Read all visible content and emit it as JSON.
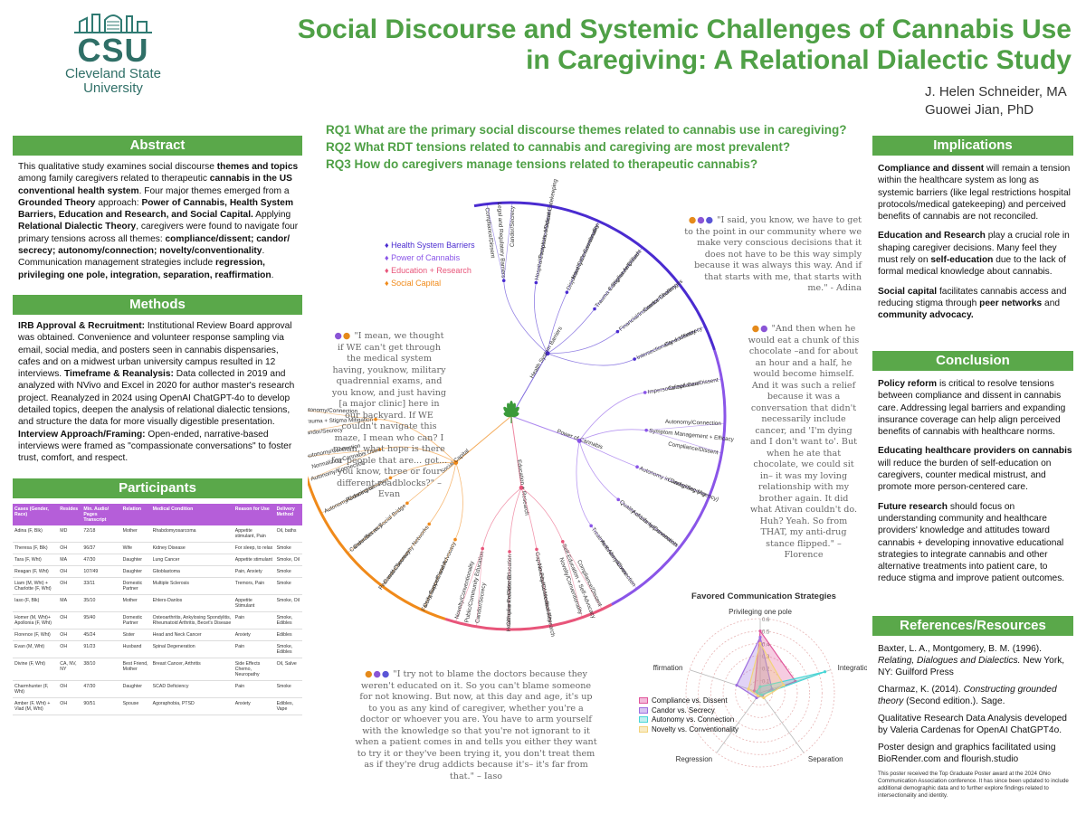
{
  "logo": {
    "wordmark": "CSU",
    "line1": "Cleveland State",
    "line2": "University"
  },
  "title": {
    "line1": "Social Discourse and Systemic Challenges of Cannabis Use",
    "line2": "in Caregiving: A Relational Dialectic Study"
  },
  "authors": {
    "a1": "J. Helen Schneider, MA",
    "a2": "Guowei Jian, PhD"
  },
  "research_questions": [
    "RQ1 What are the primary social discourse themes related to cannabis use in caregiving?",
    "RQ2 What RDT tensions related to cannabis and caregiving are most prevalent?",
    "RQ3 How do caregivers manage tensions related to therapeutic cannabis?"
  ],
  "abstract": {
    "heading": "Abstract",
    "t1": "This qualitative study examines social discourse ",
    "b1": "themes and topics",
    "t2": " among family caregivers related to therapeutic ",
    "b2": "cannabis in the US conventional health system",
    "t3": ". Four major themes emerged from a ",
    "b3": "Grounded Theory",
    "t4": " approach: ",
    "b4": "Power of Cannabis, Health System Barriers, Education and Research, and Social Capital.",
    "t5": " Applying ",
    "b5": "Relational Dialectic Theory",
    "t6": ", caregivers were found to navigate four primary tensions across all themes: ",
    "b6": "compliance/dissent; candor/ secrecy; autonomy/connection; novelty/conventionality",
    "t7": ". Communication management strategies include ",
    "b7": "regression, privileging one pole, integration, separation, reaffirmation",
    "t8": "."
  },
  "methods": {
    "heading": "Methods",
    "b1": "IRB Approval & Recruitment:",
    "t1": " Institutional Review Board approval was obtained. Convenience and volunteer response sampling via email, social media, and posters seen in cannabis dispensaries, cafes and on a midwest urban university campus resulted in 12 interviews. ",
    "b2": "Timeframe & Reanalysis:",
    "t2": " Data collected in 2019 and analyzed with NVivo and Excel in 2020 for author master's research project. Reanalyzed in 2024 using OpenAI ChatGPT-4o to develop detailed topics, deepen the analysis of relational dialectic tensions, and structure the data for more visually digestible presentation. ",
    "b3": "Interview Approach/Framing:",
    "t3": " Open-ended, narrative-based interviews were framed as \"compassionate conversations\" to foster trust, comfort, and respect."
  },
  "participants": {
    "heading": "Participants",
    "columns": [
      "Cases (Gender, Race)",
      "Resides",
      "Min. Audio/ Pages Transcript",
      "Relation",
      "Medical Condition",
      "Reason for Use",
      "Delivery Method"
    ],
    "rows": [
      [
        "Adina (F, Blk)",
        "MD",
        "72/18",
        "Mother",
        "Rhabdomyosarcoma",
        "Appetite stimulant, Pain",
        "Oil, baths"
      ],
      [
        "Theresa (F, Blk)",
        "OH",
        "96/37",
        "Wife",
        "Kidney Disease",
        "For sleep, to relax",
        "Smoke"
      ],
      [
        "Tara (F, Wht)",
        "MA",
        "47/30",
        "Daughter",
        "Lung Cancer",
        "Appetite stimulant",
        "Smoke, Oil"
      ],
      [
        "Reagan (F, Wht)",
        "OH",
        "107/49",
        "Daughter",
        "Glioblastoma",
        "Pain, Anxiety",
        "Smoke"
      ],
      [
        "Liam (M, Wht) + Charlotte (F, Wht)",
        "OH",
        "33/11",
        "Domestic Partner",
        "Multiple Sclerosis",
        "Tremors, Pain",
        "Smoke"
      ],
      [
        "Iaso (F, Blk)",
        "MA",
        "35/10",
        "Mother",
        "Ehlers-Danlos",
        "Appetite Stimulant",
        "Smoke, Oil"
      ],
      [
        "Homer (M, Wht)+ Apollonia (F, Wht)",
        "OH",
        "95/40",
        "Domestic Partner",
        "Osteoarthritis, Ankylosing Spondylitis, Rheumatoid Arthritis, Becet's Disease",
        "Pain",
        "Smoke, Edibles"
      ],
      [
        "Florence (F, Wht)",
        "OH",
        "45/24",
        "Sister",
        "Head and Neck Cancer",
        "Anxiety",
        "Edibles"
      ],
      [
        "Evan (M, Wht)",
        "OH",
        "91/23",
        "Husband",
        "Spinal Degeneration",
        "Pain",
        "Smoke, Edibles"
      ],
      [
        "Divine (F, Wht)",
        "CA, NV, NY",
        "38/10",
        "Best Friend, Mother",
        "Breast Cancer, Arthritis",
        "Side Effects Chemo, Neuropathy",
        "Oil, Salve"
      ],
      [
        "Charmhunter (F, Wht)",
        "OH",
        "47/30",
        "Daughter",
        "SCAD Deficiency",
        "Pain",
        "Smoke"
      ],
      [
        "Amber (F, Wht) + Vlad (M, Wht)",
        "OH",
        "90/51",
        "Spouse",
        "Agoraphobia, PTSD",
        "Anxiety",
        "Edibles, Vape"
      ]
    ]
  },
  "legend": [
    {
      "label": "Health System Barriers",
      "color": "#4a2bd0"
    },
    {
      "label": "Power of Cannabis",
      "color": "#8a55e8"
    },
    {
      "label": "Education + Research",
      "color": "#e8557a"
    },
    {
      "label": "Social Capital",
      "color": "#f08a1a"
    }
  ],
  "quotes": {
    "q1": "\"I said, you know, we have to get to the point in our community where we make very conscious decisions that it does not have to be this way simply because it was always this way. And if that starts with me, that starts with me.\" - Adina",
    "q2": "\"I mean, we thought if WE can't get through the medical system having, youknow, military quadrennial exams, and you know, and just having [a major clinic] here in our backyard. If WE couldn't navigate this maze, I mean who can? I mean, what hope is there for people that are... got... you know, three or four different roadblocks?\" – Evan",
    "q3": "\"And then when he would eat a chunk of this chocolate –and for about an hour and a half, he would become himself. And it was such a relief because it was a conversation that didn't necessarily include cancer, and 'I'm dying and I don't want to'. But when he ate that chocolate, we could sit in– it was my loving relationship with my brother again. It did what Ativan couldn't do. Huh? Yeah. So from THAT, my anti-drug stance flipped.\" – Florence",
    "q4": "\"I try not to blame the doctors because they weren't educated on it. So you can't blame someone for not knowing. But now, at this day and age, it's up to you as any kind of caregiver, whether you're a doctor or whoever you are. You have to arm yourself with the knowledge so that you're not ignorant to it when a patient comes in and tells you either they want to try it or they've been trying it, you don't treat them as if they're drug addicts because it's– it's far from that.\" – Iaso"
  },
  "tree_labels": {
    "themes": [
      "Health System Barriers",
      "Power of Cannabis",
      "Education + Research",
      "Social Capital"
    ],
    "topics": [
      "Legal and Regulatory Barriers",
      "Hospital Protocols, Medical Gatekeeping",
      "Disjointed Care Coordination",
      "Trauma + Stigma Amplified",
      "Financial/Insurance Challenges",
      "Intersectionality + Identity",
      "Impersonalized Care",
      "Symptom Management + Efficacy",
      "Autonomy in Caregiving (Agency)",
      "Quality of Life Improvements",
      "Treatment Alternatives",
      "Self-Education + Self-Advocacy",
      "Gaps in Formal Medical Research",
      "Healthcare Provider Education",
      "Public/Community Education",
      "Family Support and Advocacy",
      "Peer and Community Networks",
      "Cannabis as Social Bridge",
      "Reducing Isolation",
      "Normalizing Cannabis Use",
      "Trauma + Stigma Mitigation"
    ],
    "tensions": [
      "Compliance/Dissent",
      "Candor/Secrecy",
      "Compliance/Dissent",
      "Novelty/Conventionality",
      "Compliance/Dissent",
      "Candor/Secrecy",
      "Candor/Secrecy",
      "Compliance/Dissent",
      "Autonomy/Connection",
      "Compliance/Dissent",
      "Candor/Secrecy",
      "Autonomy/Connection",
      "Autonomy/Connection",
      "Compliance/Dissent",
      "Novelty/Conventionality",
      "Novelty/Conventionality",
      "Compliance/Dissent",
      "Candor/Secrecy",
      "Novelty/Conventionality",
      "Compliance/Dissent",
      "Candor/Secrecy",
      "Candor/Secrecy",
      "Autonomy/Connection",
      "Autonomy/Connection",
      "Autonomy/Connection",
      "Candor/Secrecy",
      "Autonomy/Connection"
    ]
  },
  "radar": {
    "title": "Favored Communication Strategies",
    "axes": [
      "Privileging one pole",
      "Integration",
      "Separation",
      "Regression",
      "Reaffirmation"
    ],
    "rings": [
      "0.1",
      "0.2",
      "0.3",
      "0.4",
      "0.5",
      "0.6"
    ],
    "series": [
      {
        "name": "Compliance vs. Dissent",
        "color": "#e0559a",
        "values": [
          0.5,
          0.3,
          0.02,
          0.02,
          0.05
        ]
      },
      {
        "name": "Candor vs. Secrecy",
        "color": "#9d6ee0",
        "values": [
          0.45,
          0.1,
          0.03,
          0.05,
          0.2
        ]
      },
      {
        "name": "Autonomy vs. Connection",
        "color": "#47d6d6",
        "values": [
          0.05,
          0.55,
          0.02,
          0.02,
          0.03
        ]
      },
      {
        "name": "Novelty vs. Conventionality",
        "color": "#f2d27a",
        "values": [
          0.4,
          0.2,
          0.05,
          0.03,
          0.1
        ]
      }
    ]
  },
  "implications": {
    "heading": "Implications",
    "p1b": "Compliance and dissent",
    "p1": " will remain a tension within the healthcare system as long as systemic barriers (like legal restrictions hospital protocols/medical gatekeeping) and perceived benefits of cannabis are not reconciled.",
    "p2b": "Education and Research",
    "p2": " play a crucial role in shaping caregiver decisions. Many feel they must rely on ",
    "p2b2": "self-education",
    "p2c": " due to the lack of formal medical knowledge about cannabis.",
    "p3b": "Social capital",
    "p3": " facilitates cannabis access and reducing stigma through ",
    "p3b2": "peer networks",
    "p3c": " and ",
    "p3b3": "community advocacy."
  },
  "conclusion": {
    "heading": "Conclusion",
    "p1b": "Policy reform",
    "p1": " is critical to resolve tensions between compliance and dissent in cannabis care. Addressing legal barriers and expanding insurance coverage can help align perceived benefits of cannabis with healthcare norms.",
    "p2b": "Educating healthcare providers on cannabis",
    "p2": " will reduce the burden of self-education on caregivers, counter medical mistrust, and promote more person-centered care.",
    "p3b": "Future research",
    "p3": " should focus on understanding community and healthcare providers' knowledge and attitudes toward cannabis + developing innovative educational strategies to integrate cannabis and other alternative treatments into patient care, to reduce stigma and improve patient outcomes."
  },
  "references": {
    "heading": "References/Resources",
    "r1a": "Baxter, L. A., Montgomery, B. M. (1996). ",
    "r1i": "Relating, Dialogues and Dialectics.",
    "r1b": " New York, NY: Guilford Press",
    "r2a": "Charmaz, K. (2014). ",
    "r2i": "Constructing grounded theory",
    "r2b": " (Second edition.). Sage.",
    "r3": "Qualitative Research Data Analysis developed by Valeria Cardenas for OpenAI ChatGPT4o.",
    "r4": "Poster design and graphics facilitated using BioRender.com and flourish.studio",
    "note": "This poster received the Top Graduate Poster award at the 2024 Ohio Communication Association conference. It has since been updated to include additional demographic data and to further explore findings related to intersectionality and identity."
  }
}
